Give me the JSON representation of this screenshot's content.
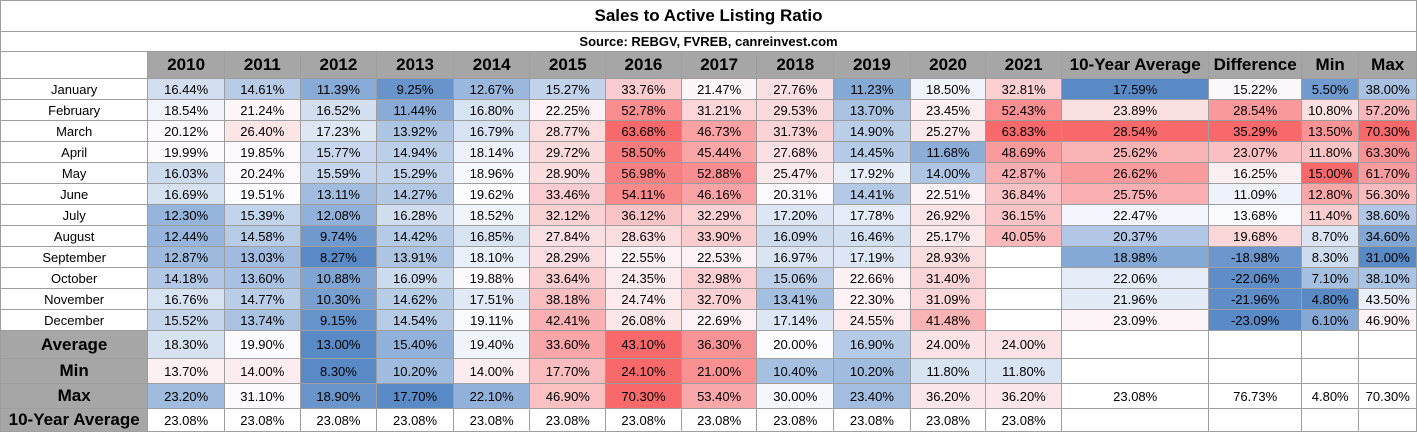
{
  "chart_data": {
    "type": "table",
    "title": "Sales to Active Listing Ratio",
    "subtitle": "Source: REBGV, FVREB, canreinvest.com",
    "columns": [
      "2010",
      "2011",
      "2012",
      "2013",
      "2014",
      "2015",
      "2016",
      "2017",
      "2018",
      "2019",
      "2020",
      "2021",
      "10-Year Average",
      "Difference",
      "Min",
      "Max"
    ],
    "rows": [
      {
        "label": "January",
        "values": [
          "16.44%",
          "14.61%",
          "11.39%",
          "9.25%",
          "12.67%",
          "15.27%",
          "33.76%",
          "21.47%",
          "27.76%",
          "11.23%",
          "18.50%",
          "32.81%",
          "17.59%",
          "15.22%",
          "5.50%",
          "38.00%"
        ]
      },
      {
        "label": "February",
        "values": [
          "18.54%",
          "21.24%",
          "16.52%",
          "11.44%",
          "16.80%",
          "22.25%",
          "52.78%",
          "31.21%",
          "29.53%",
          "13.70%",
          "23.45%",
          "52.43%",
          "23.89%",
          "28.54%",
          "10.80%",
          "57.20%"
        ]
      },
      {
        "label": "March",
        "values": [
          "20.12%",
          "26.40%",
          "17.23%",
          "13.92%",
          "16.79%",
          "28.77%",
          "63.68%",
          "46.73%",
          "31.73%",
          "14.90%",
          "25.27%",
          "63.83%",
          "28.54%",
          "35.29%",
          "13.50%",
          "70.30%"
        ]
      },
      {
        "label": "April",
        "values": [
          "19.99%",
          "19.85%",
          "15.77%",
          "14.94%",
          "18.14%",
          "29.72%",
          "58.50%",
          "45.44%",
          "27.68%",
          "14.45%",
          "11.68%",
          "48.69%",
          "25.62%",
          "23.07%",
          "11.80%",
          "63.30%"
        ]
      },
      {
        "label": "May",
        "values": [
          "16.03%",
          "20.24%",
          "15.59%",
          "15.29%",
          "18.96%",
          "28.90%",
          "56.98%",
          "52.88%",
          "25.47%",
          "17.92%",
          "14.00%",
          "42.87%",
          "26.62%",
          "16.25%",
          "15.00%",
          "61.70%"
        ]
      },
      {
        "label": "June",
        "values": [
          "16.69%",
          "19.51%",
          "13.11%",
          "14.27%",
          "19.62%",
          "33.46%",
          "54.11%",
          "46.16%",
          "20.31%",
          "14.41%",
          "22.51%",
          "36.84%",
          "25.75%",
          "11.09%",
          "12.80%",
          "56.30%"
        ]
      },
      {
        "label": "July",
        "values": [
          "12.30%",
          "15.39%",
          "12.08%",
          "16.28%",
          "18.52%",
          "32.12%",
          "36.12%",
          "32.29%",
          "17.20%",
          "17.78%",
          "26.92%",
          "36.15%",
          "22.47%",
          "13.68%",
          "11.40%",
          "38.60%"
        ]
      },
      {
        "label": "August",
        "values": [
          "12.44%",
          "14.58%",
          "9.74%",
          "14.42%",
          "16.85%",
          "27.84%",
          "28.63%",
          "33.90%",
          "16.09%",
          "16.46%",
          "25.17%",
          "40.05%",
          "20.37%",
          "19.68%",
          "8.70%",
          "34.60%"
        ]
      },
      {
        "label": "September",
        "values": [
          "12.87%",
          "13.03%",
          "8.27%",
          "13.91%",
          "18.10%",
          "28.29%",
          "22.55%",
          "22.53%",
          "16.97%",
          "17.19%",
          "28.93%",
          "",
          "18.98%",
          "-18.98%",
          "8.30%",
          "31.00%"
        ]
      },
      {
        "label": "October",
        "values": [
          "14.18%",
          "13.60%",
          "10.88%",
          "16.09%",
          "19.88%",
          "33.64%",
          "24.35%",
          "32.98%",
          "15.06%",
          "22.66%",
          "31.40%",
          "",
          "22.06%",
          "-22.06%",
          "7.10%",
          "38.10%"
        ]
      },
      {
        "label": "November",
        "values": [
          "16.76%",
          "14.77%",
          "10.30%",
          "14.62%",
          "17.51%",
          "38.18%",
          "24.74%",
          "32.70%",
          "13.41%",
          "22.30%",
          "31.09%",
          "",
          "21.96%",
          "-21.96%",
          "4.80%",
          "43.50%"
        ]
      },
      {
        "label": "December",
        "values": [
          "15.52%",
          "13.74%",
          "9.15%",
          "14.54%",
          "19.11%",
          "42.41%",
          "26.08%",
          "22.69%",
          "17.14%",
          "24.55%",
          "41.48%",
          "",
          "23.09%",
          "-23.09%",
          "6.10%",
          "46.90%"
        ]
      }
    ],
    "summary_rows": [
      {
        "label": "Average",
        "values": [
          "18.30%",
          "19.90%",
          "13.00%",
          "15.40%",
          "19.40%",
          "33.60%",
          "43.10%",
          "36.30%",
          "20.00%",
          "16.90%",
          "24.00%",
          "24.00%",
          "",
          "",
          "",
          ""
        ]
      },
      {
        "label": "Min",
        "values": [
          "13.70%",
          "14.00%",
          "8.30%",
          "10.20%",
          "14.00%",
          "17.70%",
          "24.10%",
          "21.00%",
          "10.40%",
          "10.20%",
          "11.80%",
          "11.80%",
          "",
          "",
          "",
          ""
        ]
      },
      {
        "label": "Max",
        "values": [
          "23.20%",
          "31.10%",
          "18.90%",
          "17.70%",
          "22.10%",
          "46.90%",
          "70.30%",
          "53.40%",
          "30.00%",
          "23.40%",
          "36.20%",
          "36.20%",
          "23.08%",
          "76.73%",
          "4.80%",
          "70.30%"
        ]
      },
      {
        "label": "10-Year Average",
        "values": [
          "23.08%",
          "23.08%",
          "23.08%",
          "23.08%",
          "23.08%",
          "23.08%",
          "23.08%",
          "23.08%",
          "23.08%",
          "23.08%",
          "23.08%",
          "23.08%",
          "",
          "",
          "",
          ""
        ]
      }
    ],
    "color_scale": {
      "low": "#5a8ac6",
      "mid": "#fcfcff",
      "high": "#f8696b"
    }
  }
}
